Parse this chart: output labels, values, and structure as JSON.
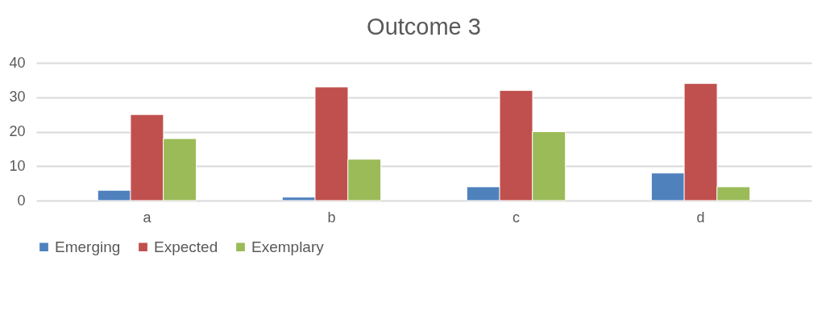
{
  "chart_data": {
    "type": "bar",
    "title": "Outcome 3",
    "categories": [
      "a",
      "b",
      "c",
      "d"
    ],
    "series": [
      {
        "name": "Emerging",
        "color": "#4f81bd",
        "values": [
          3,
          1,
          4,
          8
        ]
      },
      {
        "name": "Expected",
        "color": "#c0504d",
        "values": [
          25,
          33,
          32,
          34
        ]
      },
      {
        "name": "Exemplary",
        "color": "#9bbb59",
        "values": [
          18,
          12,
          20,
          4
        ]
      }
    ],
    "ylim": [
      0,
      40
    ],
    "yticks": [
      0,
      10,
      20,
      30,
      40
    ],
    "grid": "y",
    "legend": "bottom"
  }
}
